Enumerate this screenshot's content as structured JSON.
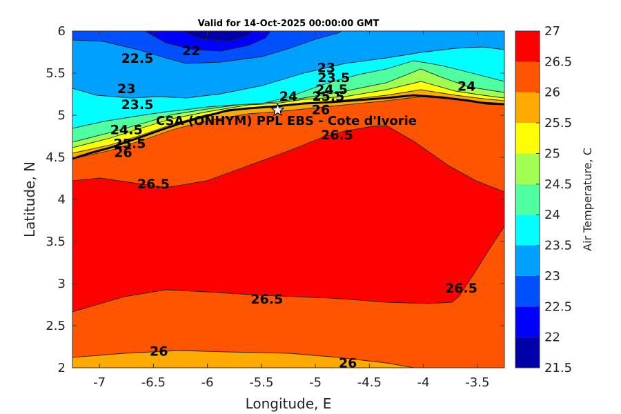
{
  "chart_data": {
    "type": "contour",
    "title": "Valid for 14-Oct-2025 00:00:00 GMT",
    "xlabel": "Longitude, E",
    "ylabel": "Latitude, N",
    "xlim": [
      -7.25,
      -3.25
    ],
    "ylim": [
      2,
      6
    ],
    "xticks": [
      "-7",
      "-6.5",
      "-6",
      "-5.5",
      "-5",
      "-4.5",
      "-4",
      "-3.5"
    ],
    "yticks": [
      "2",
      "2.5",
      "3",
      "3.5",
      "4",
      "4.5",
      "5",
      "5.5",
      "6"
    ],
    "colorbar": {
      "label": "Air Temperature, C",
      "ticks": [
        "21.5",
        "22",
        "22.5",
        "23",
        "23.5",
        "24",
        "24.5",
        "25",
        "25.5",
        "26",
        "26.5",
        "27"
      ],
      "levels": [
        21.5,
        22,
        22.5,
        23,
        23.5,
        24,
        24.5,
        25,
        25.5,
        26,
        26.5,
        27
      ],
      "colors": [
        "#0000a8",
        "#0000ff",
        "#0050ff",
        "#00a0ff",
        "#00ffff",
        "#50ffa0",
        "#a0ff50",
        "#ffff00",
        "#ffaa00",
        "#ff5500",
        "#ff0000",
        "#aa0000"
      ]
    },
    "contour_labels": [
      {
        "text": "22.5",
        "lon": -6.65,
        "lat": 5.68
      },
      {
        "text": "22",
        "lon": -6.15,
        "lat": 5.77
      },
      {
        "text": "23",
        "lon": -6.75,
        "lat": 5.32
      },
      {
        "text": "23.5",
        "lon": -6.65,
        "lat": 5.13
      },
      {
        "text": "24.5",
        "lon": -6.75,
        "lat": 4.83
      },
      {
        "text": "25.5",
        "lon": -6.72,
        "lat": 4.67
      },
      {
        "text": "26",
        "lon": -6.78,
        "lat": 4.56
      },
      {
        "text": "23",
        "lon": -4.9,
        "lat": 5.57
      },
      {
        "text": "23.5",
        "lon": -4.83,
        "lat": 5.45
      },
      {
        "text": "24",
        "lon": -5.25,
        "lat": 5.23
      },
      {
        "text": "24.5",
        "lon": -4.85,
        "lat": 5.31
      },
      {
        "text": "25.5",
        "lon": -4.88,
        "lat": 5.23
      },
      {
        "text": "26",
        "lon": -4.95,
        "lat": 5.07
      },
      {
        "text": "24",
        "lon": -3.6,
        "lat": 5.35
      },
      {
        "text": "26.5",
        "lon": -4.8,
        "lat": 4.77
      },
      {
        "text": "26.5",
        "lon": -6.5,
        "lat": 4.19
      },
      {
        "text": "26.5",
        "lon": -5.45,
        "lat": 2.82
      },
      {
        "text": "26.5",
        "lon": -3.65,
        "lat": 2.95
      },
      {
        "text": "26",
        "lon": -6.45,
        "lat": 2.2
      },
      {
        "text": "26",
        "lon": -4.7,
        "lat": 2.06
      }
    ],
    "station": {
      "name": "CSA (ONHYM) PPL EBS - Cote d'Ivorie",
      "lon": -5.35,
      "lat": 5.06
    }
  }
}
